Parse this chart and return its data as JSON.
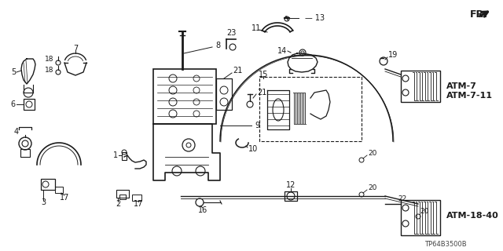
{
  "bg_color": "#ffffff",
  "line_color": "#1a1a1a",
  "text_color": "#1a1a1a",
  "atm_labels": [
    "ATM-7",
    "ATM-7-11",
    "ATM-18-40"
  ],
  "part_code": "TP64B3500B",
  "fr_label": "FR.",
  "figsize": [
    6.4,
    3.2
  ],
  "dpi": 100
}
